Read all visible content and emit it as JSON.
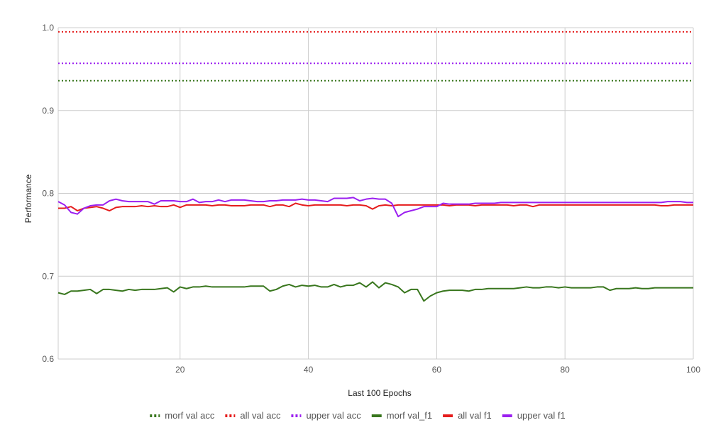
{
  "chart_data": {
    "type": "line",
    "title": "",
    "xlabel": "Last 100 Epochs",
    "ylabel": "Performance",
    "xlim": [
      1,
      100
    ],
    "ylim": [
      0.6,
      1.0
    ],
    "x_ticks": [
      20,
      40,
      60,
      80,
      100
    ],
    "y_ticks": [
      0.6,
      0.7,
      0.8,
      0.9,
      1.0
    ],
    "y_tick_labels": [
      "0.6",
      "0.7",
      "0.8",
      "0.9",
      "1.0"
    ],
    "grid": true,
    "legend_position": "bottom",
    "series": [
      {
        "name": "morf val acc",
        "color": "#38761d",
        "style": "dotted",
        "constant": 0.936
      },
      {
        "name": "all val acc",
        "color": "#e51c1c",
        "style": "dotted",
        "constant": 0.995
      },
      {
        "name": "upper val acc",
        "color": "#9b1ff0",
        "style": "dotted",
        "constant": 0.957
      },
      {
        "name": "morf val_f1",
        "color": "#38761d",
        "style": "solid",
        "values": [
          0.68,
          0.678,
          0.682,
          0.682,
          0.683,
          0.684,
          0.679,
          0.684,
          0.684,
          0.683,
          0.682,
          0.684,
          0.683,
          0.684,
          0.684,
          0.684,
          0.685,
          0.686,
          0.681,
          0.687,
          0.685,
          0.687,
          0.687,
          0.688,
          0.687,
          0.687,
          0.687,
          0.687,
          0.687,
          0.687,
          0.688,
          0.688,
          0.688,
          0.682,
          0.684,
          0.688,
          0.69,
          0.687,
          0.689,
          0.688,
          0.689,
          0.687,
          0.687,
          0.69,
          0.687,
          0.689,
          0.689,
          0.692,
          0.687,
          0.693,
          0.686,
          0.692,
          0.69,
          0.687,
          0.68,
          0.684,
          0.684,
          0.67,
          0.676,
          0.68,
          0.682,
          0.683,
          0.683,
          0.683,
          0.682,
          0.684,
          0.684,
          0.685,
          0.685,
          0.685,
          0.685,
          0.685,
          0.686,
          0.687,
          0.686,
          0.686,
          0.687,
          0.687,
          0.686,
          0.687,
          0.686,
          0.686,
          0.686,
          0.686,
          0.687,
          0.687,
          0.683,
          0.685,
          0.685,
          0.685,
          0.686,
          0.685,
          0.685,
          0.686,
          0.686,
          0.686,
          0.686,
          0.686,
          0.686,
          0.686
        ]
      },
      {
        "name": "all val f1",
        "color": "#e51c1c",
        "style": "solid",
        "values": [
          0.782,
          0.782,
          0.784,
          0.779,
          0.782,
          0.783,
          0.784,
          0.782,
          0.779,
          0.783,
          0.784,
          0.784,
          0.784,
          0.785,
          0.784,
          0.785,
          0.784,
          0.784,
          0.786,
          0.783,
          0.786,
          0.786,
          0.786,
          0.786,
          0.785,
          0.786,
          0.786,
          0.785,
          0.785,
          0.785,
          0.786,
          0.786,
          0.786,
          0.784,
          0.786,
          0.786,
          0.784,
          0.788,
          0.786,
          0.785,
          0.786,
          0.786,
          0.786,
          0.786,
          0.786,
          0.785,
          0.786,
          0.786,
          0.785,
          0.781,
          0.785,
          0.786,
          0.785,
          0.786,
          0.786,
          0.786,
          0.786,
          0.786,
          0.786,
          0.786,
          0.786,
          0.785,
          0.786,
          0.786,
          0.786,
          0.785,
          0.786,
          0.786,
          0.786,
          0.786,
          0.786,
          0.785,
          0.786,
          0.786,
          0.784,
          0.786,
          0.786,
          0.786,
          0.786,
          0.786,
          0.786,
          0.786,
          0.786,
          0.786,
          0.786,
          0.786,
          0.786,
          0.786,
          0.786,
          0.786,
          0.786,
          0.786,
          0.786,
          0.786,
          0.785,
          0.785,
          0.786,
          0.786,
          0.786,
          0.786
        ]
      },
      {
        "name": "upper val f1",
        "color": "#9b1ff0",
        "style": "solid",
        "values": [
          0.79,
          0.786,
          0.777,
          0.775,
          0.782,
          0.785,
          0.786,
          0.786,
          0.791,
          0.793,
          0.791,
          0.79,
          0.79,
          0.79,
          0.79,
          0.787,
          0.791,
          0.791,
          0.791,
          0.79,
          0.79,
          0.793,
          0.789,
          0.79,
          0.79,
          0.792,
          0.79,
          0.792,
          0.792,
          0.792,
          0.791,
          0.79,
          0.79,
          0.791,
          0.791,
          0.792,
          0.792,
          0.792,
          0.793,
          0.792,
          0.792,
          0.791,
          0.79,
          0.794,
          0.794,
          0.794,
          0.795,
          0.791,
          0.793,
          0.794,
          0.793,
          0.793,
          0.788,
          0.772,
          0.777,
          0.779,
          0.781,
          0.784,
          0.784,
          0.784,
          0.788,
          0.787,
          0.787,
          0.787,
          0.787,
          0.788,
          0.788,
          0.788,
          0.788,
          0.789,
          0.789,
          0.789,
          0.789,
          0.789,
          0.789,
          0.789,
          0.789,
          0.789,
          0.789,
          0.789,
          0.789,
          0.789,
          0.789,
          0.789,
          0.789,
          0.789,
          0.789,
          0.789,
          0.789,
          0.789,
          0.789,
          0.789,
          0.789,
          0.789,
          0.789,
          0.79,
          0.79,
          0.79,
          0.789,
          0.789
        ]
      }
    ]
  }
}
